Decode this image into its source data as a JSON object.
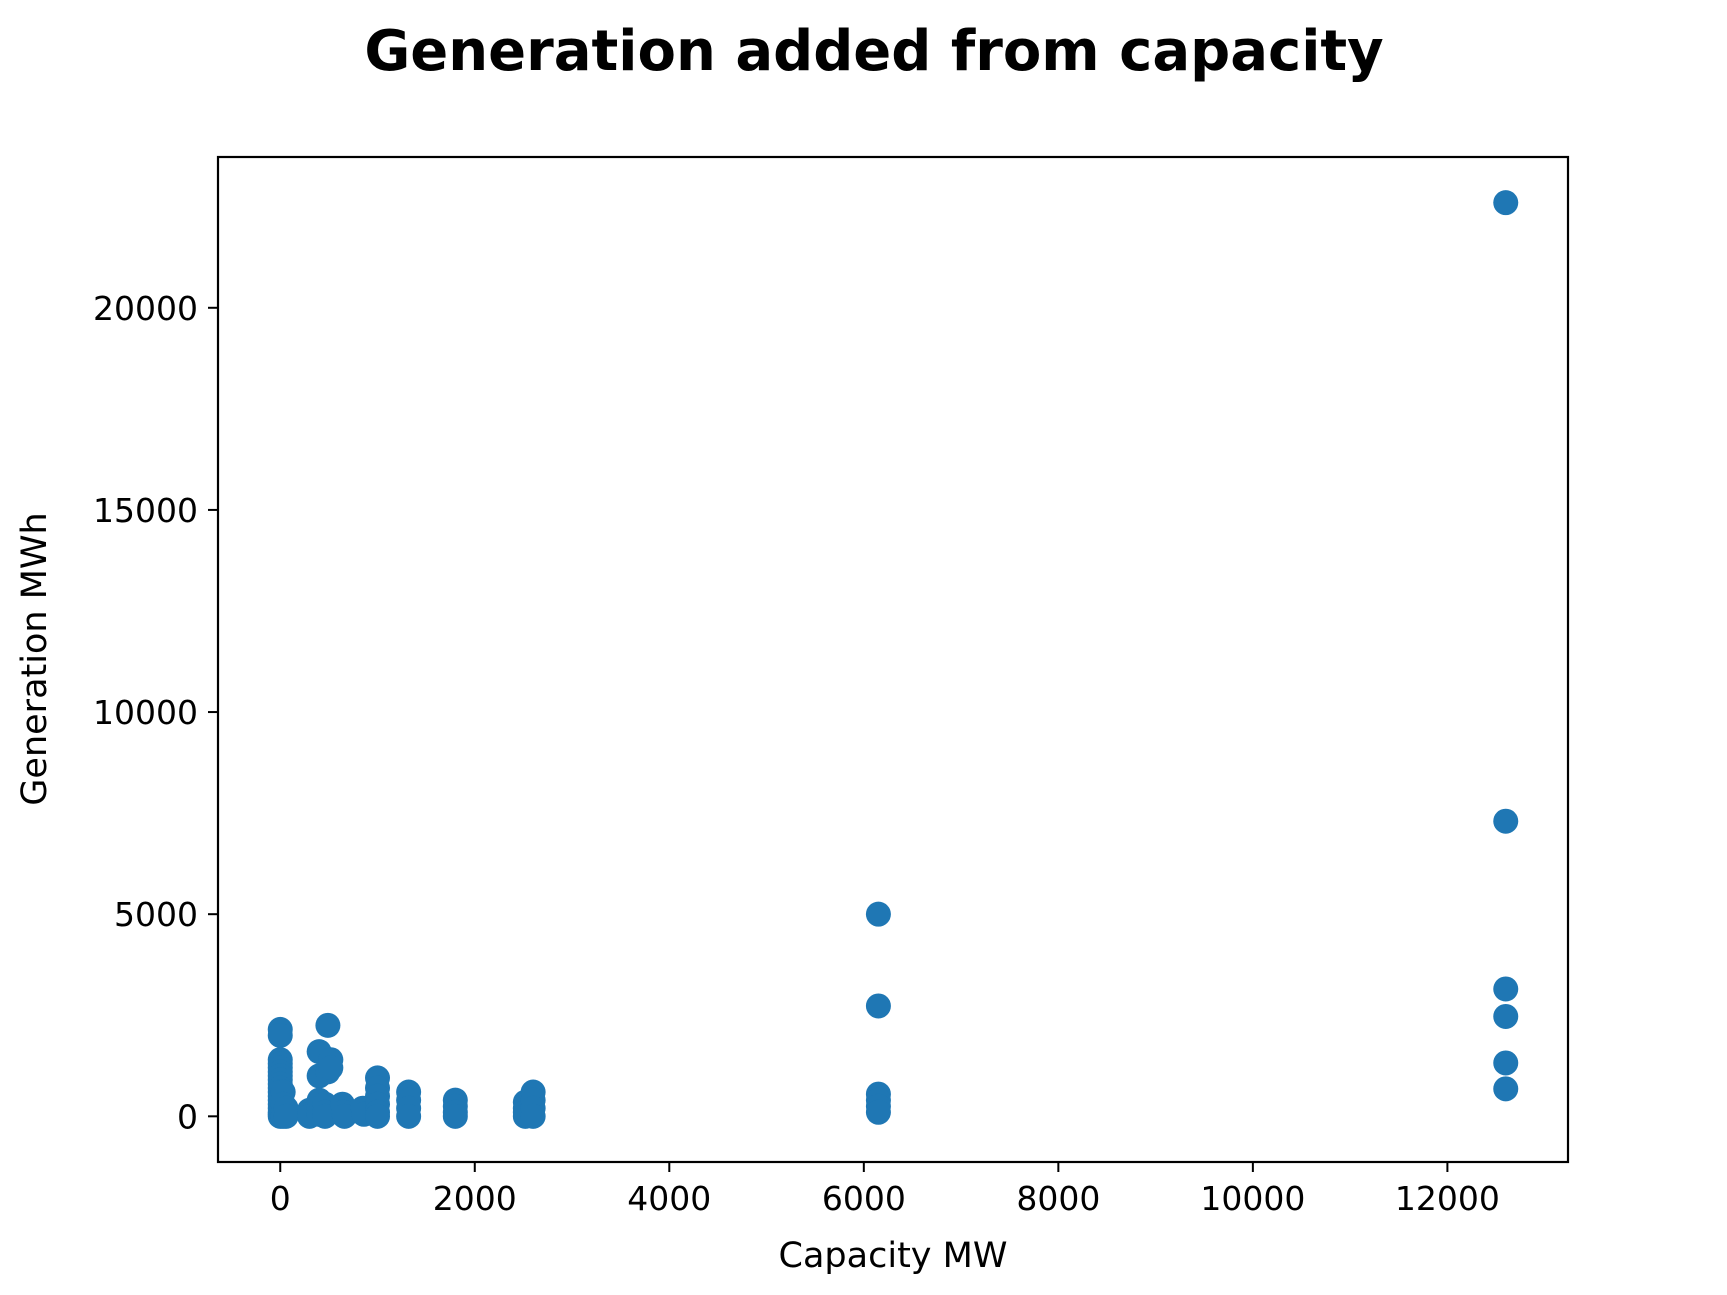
{
  "chart_data": {
    "type": "scatter",
    "title": "Generation added from capacity",
    "xlabel": "Capacity MW",
    "ylabel": "Generation MWh",
    "xlim": [
      -640,
      13240
    ],
    "ylim": [
      -1130,
      23730
    ],
    "xticks": [
      0,
      2000,
      4000,
      6000,
      8000,
      10000,
      12000
    ],
    "yticks": [
      0,
      5000,
      10000,
      15000,
      20000
    ],
    "grid": false,
    "legend": "none",
    "marker_color": "#1f77b4",
    "series": [
      {
        "points": [
          [
            0,
            2150
          ],
          [
            0,
            2000
          ],
          [
            0,
            1400
          ],
          [
            0,
            1300
          ],
          [
            0,
            1200
          ],
          [
            0,
            1100
          ],
          [
            0,
            1000
          ],
          [
            0,
            900
          ],
          [
            0,
            800
          ],
          [
            0,
            700
          ],
          [
            0,
            600
          ],
          [
            0,
            500
          ],
          [
            0,
            400
          ],
          [
            0,
            300
          ],
          [
            0,
            200
          ],
          [
            0,
            100
          ],
          [
            0,
            50
          ],
          [
            0,
            0
          ],
          [
            30,
            600
          ],
          [
            30,
            300
          ],
          [
            30,
            100
          ],
          [
            30,
            0
          ],
          [
            60,
            200
          ],
          [
            60,
            0
          ],
          [
            300,
            150
          ],
          [
            300,
            50
          ],
          [
            300,
            0
          ],
          [
            400,
            1600
          ],
          [
            400,
            1000
          ],
          [
            400,
            400
          ],
          [
            400,
            200
          ],
          [
            400,
            50
          ],
          [
            460,
            300
          ],
          [
            460,
            100
          ],
          [
            460,
            0
          ],
          [
            490,
            2250
          ],
          [
            490,
            1100
          ],
          [
            520,
            1400
          ],
          [
            520,
            1200
          ],
          [
            640,
            300
          ],
          [
            650,
            100
          ],
          [
            660,
            0
          ],
          [
            850,
            200
          ],
          [
            860,
            50
          ],
          [
            1000,
            950
          ],
          [
            1000,
            700
          ],
          [
            1000,
            500
          ],
          [
            1000,
            300
          ],
          [
            1000,
            100
          ],
          [
            1000,
            0
          ],
          [
            1320,
            600
          ],
          [
            1320,
            400
          ],
          [
            1320,
            200
          ],
          [
            1320,
            0
          ],
          [
            1800,
            400
          ],
          [
            1800,
            250
          ],
          [
            1800,
            100
          ],
          [
            1800,
            0
          ],
          [
            2520,
            350
          ],
          [
            2520,
            200
          ],
          [
            2520,
            100
          ],
          [
            2520,
            0
          ],
          [
            2600,
            600
          ],
          [
            2600,
            400
          ],
          [
            2600,
            200
          ],
          [
            2600,
            0
          ],
          [
            6150,
            5000
          ],
          [
            6150,
            2730
          ],
          [
            6150,
            550
          ],
          [
            6150,
            400
          ],
          [
            6150,
            250
          ],
          [
            6150,
            100
          ],
          [
            12600,
            22600
          ],
          [
            12600,
            7300
          ],
          [
            12600,
            3150
          ],
          [
            12600,
            2470
          ],
          [
            12600,
            1320
          ],
          [
            12600,
            680
          ]
        ]
      }
    ]
  }
}
